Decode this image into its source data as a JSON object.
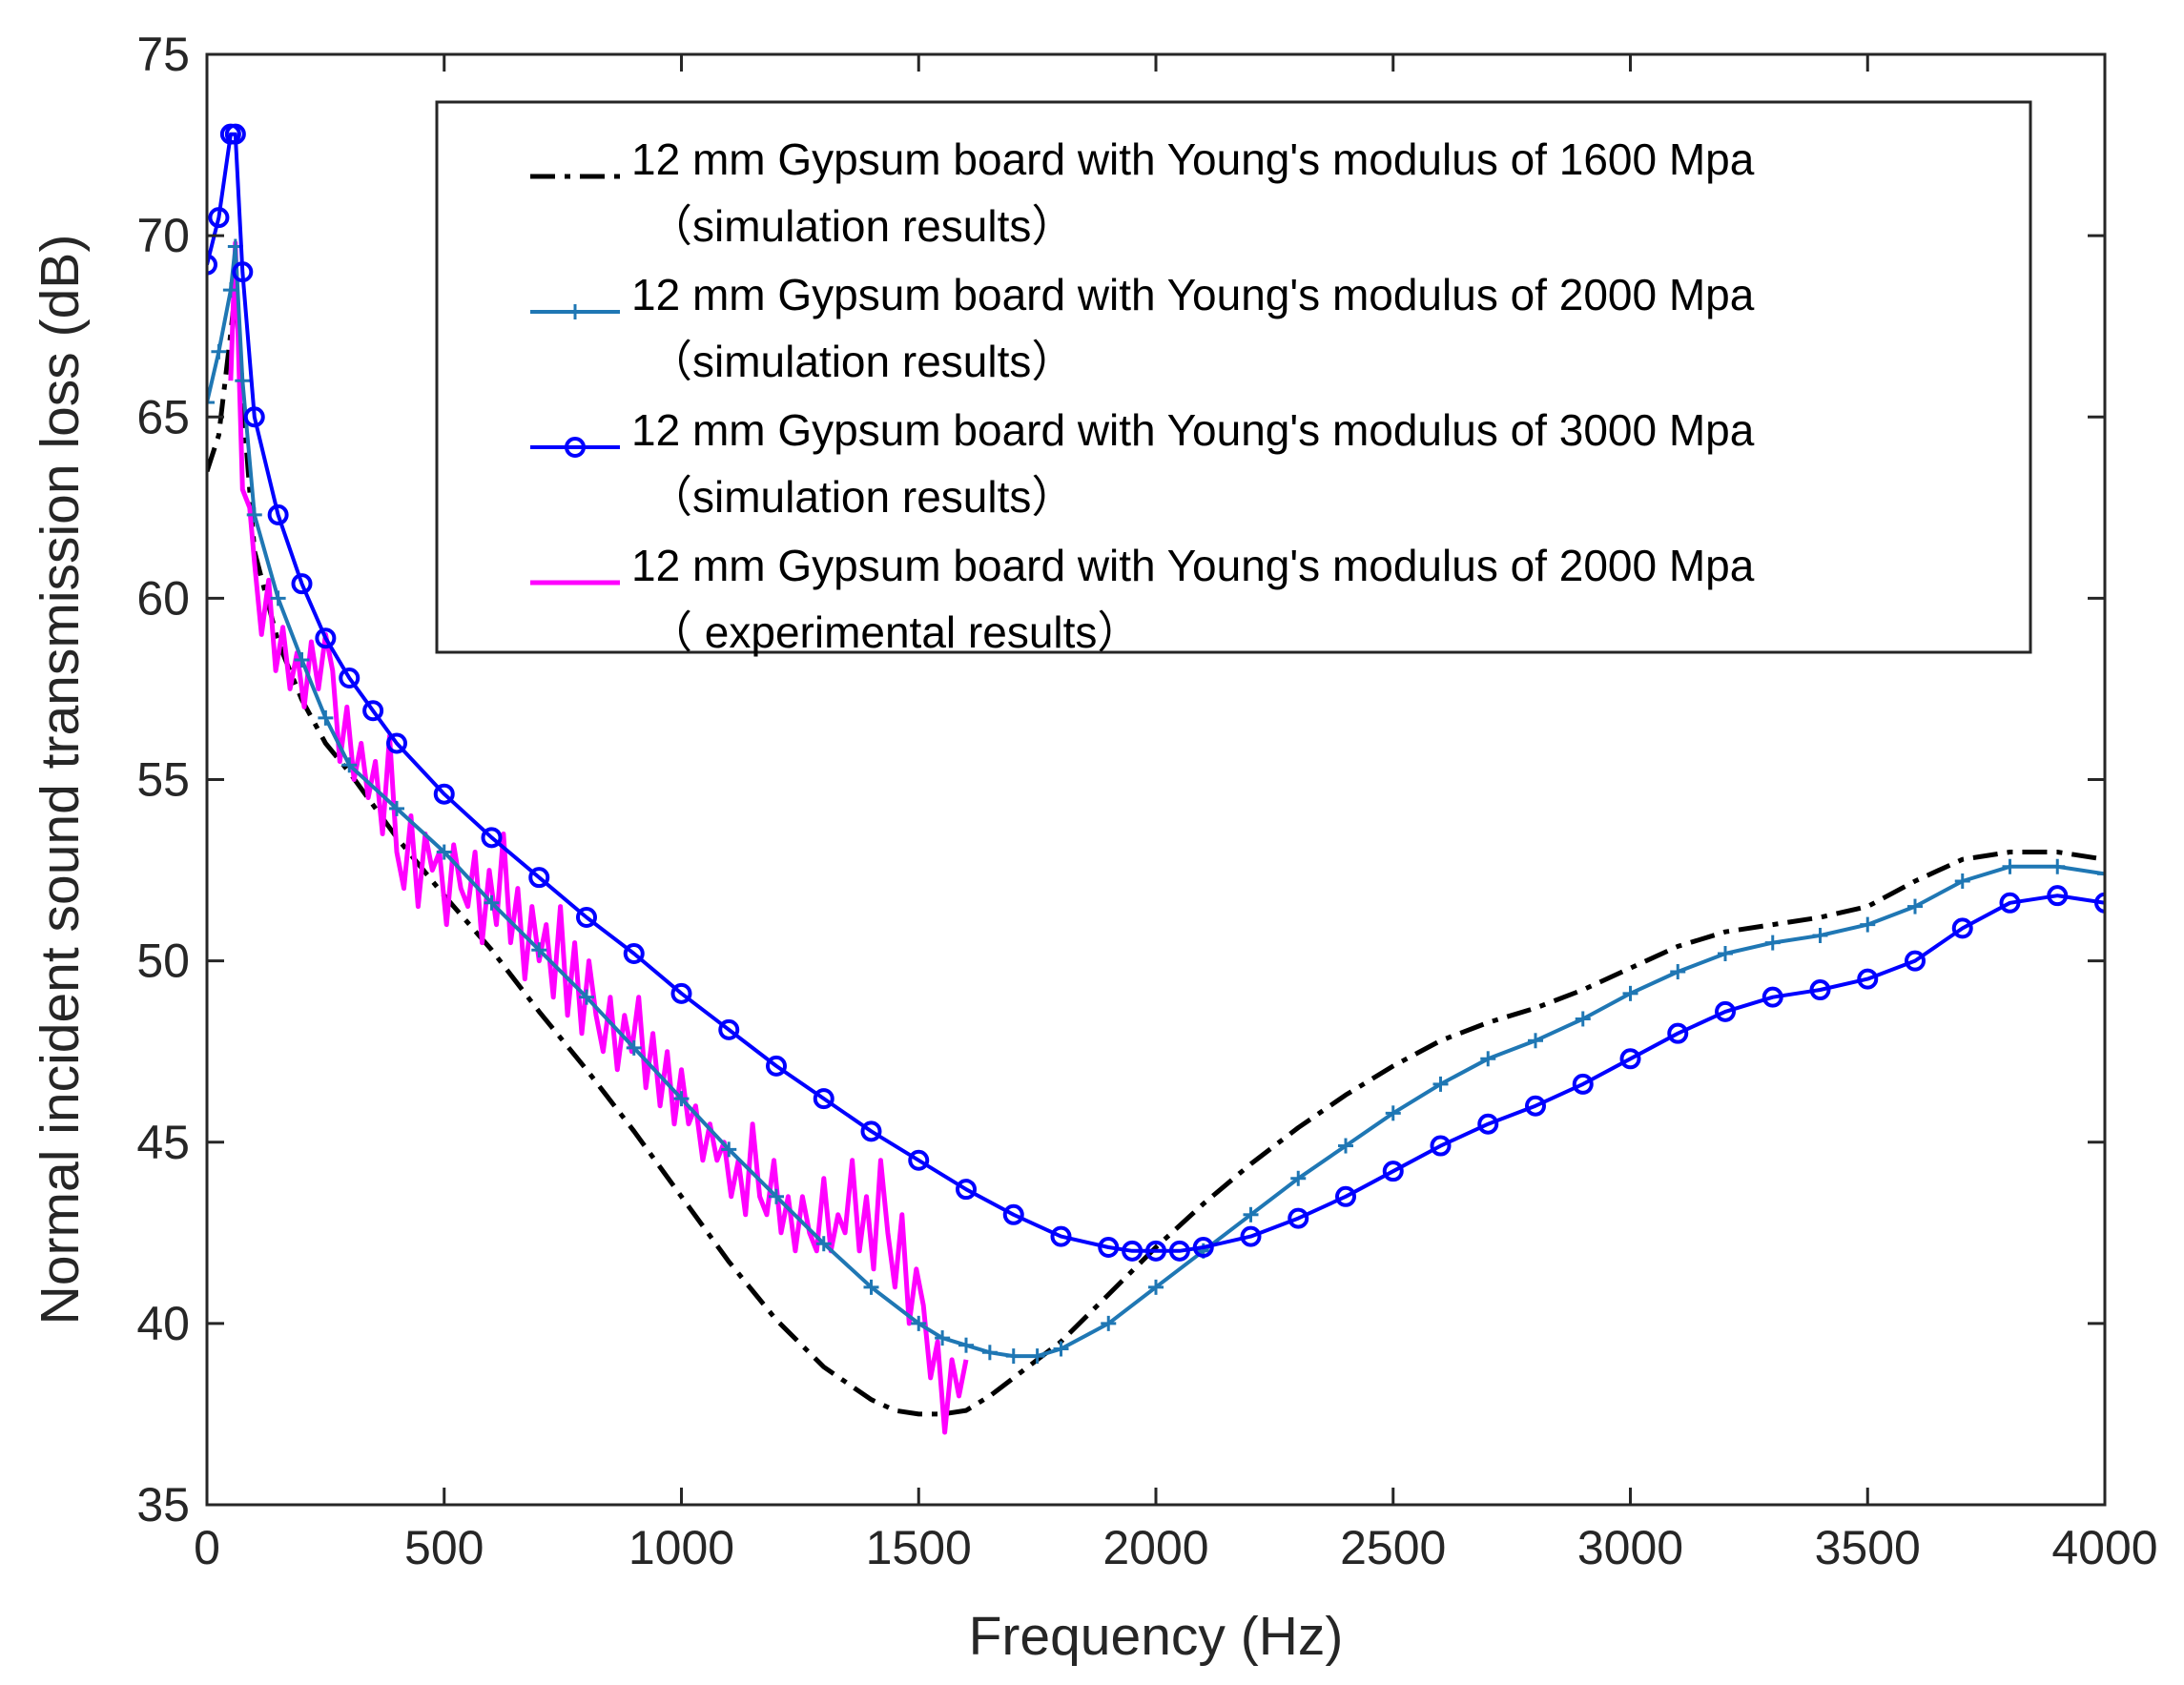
{
  "chart_data": {
    "type": "line",
    "title": "",
    "xlabel": "Frequency (Hz)",
    "ylabel": "Normal incident sound transmission loss (dB)",
    "xlim": [
      0,
      4000
    ],
    "ylim": [
      35,
      75
    ],
    "xticks": [
      0,
      500,
      1000,
      1500,
      2000,
      2500,
      3000,
      3500,
      4000
    ],
    "yticks": [
      35,
      40,
      45,
      50,
      55,
      60,
      65,
      70,
      75
    ],
    "grid": false,
    "legend_position": "top-right",
    "series": [
      {
        "name": "12 mm Gypsum board with Young's modulus of 1600 Mpa",
        "name_line2": "（simulation results）",
        "color": "#000000",
        "style": "dash-dot",
        "marker": "none",
        "x": [
          0,
          25,
          50,
          60,
          75,
          100,
          150,
          200,
          250,
          300,
          400,
          500,
          600,
          700,
          800,
          900,
          1000,
          1100,
          1200,
          1300,
          1400,
          1450,
          1500,
          1550,
          1600,
          1650,
          1700,
          1800,
          1900,
          2000,
          2100,
          2200,
          2300,
          2400,
          2500,
          2600,
          2700,
          2800,
          2900,
          3000,
          3100,
          3200,
          3300,
          3400,
          3500,
          3600,
          3700,
          3800,
          3900,
          4000
        ],
        "y": [
          63.5,
          64.5,
          67.3,
          68.5,
          65.5,
          61.3,
          58.8,
          57.2,
          56.0,
          55.2,
          53.4,
          51.8,
          50.3,
          48.6,
          47.0,
          45.3,
          43.5,
          41.7,
          40.1,
          38.8,
          37.9,
          37.6,
          37.5,
          37.5,
          37.6,
          38.0,
          38.5,
          39.5,
          40.8,
          42.1,
          43.3,
          44.4,
          45.4,
          46.3,
          47.1,
          47.8,
          48.3,
          48.7,
          49.2,
          49.8,
          50.4,
          50.8,
          51.0,
          51.2,
          51.5,
          52.2,
          52.8,
          53.0,
          53.0,
          52.8
        ]
      },
      {
        "name": "12 mm Gypsum board with Young's modulus of 2000 Mpa",
        "name_line2": "（simulation results）",
        "color": "#1f77b4",
        "style": "solid",
        "marker": "plus",
        "x": [
          0,
          25,
          50,
          60,
          75,
          100,
          150,
          200,
          250,
          300,
          400,
          500,
          600,
          700,
          800,
          900,
          1000,
          1100,
          1200,
          1300,
          1400,
          1500,
          1550,
          1600,
          1650,
          1700,
          1750,
          1800,
          1900,
          2000,
          2100,
          2200,
          2300,
          2400,
          2500,
          2600,
          2700,
          2800,
          2900,
          3000,
          3100,
          3200,
          3300,
          3400,
          3500,
          3600,
          3700,
          3800,
          3900,
          4000
        ],
        "y": [
          65.4,
          66.8,
          68.5,
          69.7,
          66.0,
          62.3,
          60.0,
          58.3,
          56.7,
          55.4,
          54.2,
          53.0,
          51.6,
          50.3,
          49.0,
          47.6,
          46.2,
          44.8,
          43.5,
          42.2,
          41.0,
          40.0,
          39.6,
          39.4,
          39.2,
          39.1,
          39.1,
          39.3,
          40.0,
          41.0,
          42.0,
          43.0,
          44.0,
          44.9,
          45.8,
          46.6,
          47.3,
          47.8,
          48.4,
          49.1,
          49.7,
          50.2,
          50.5,
          50.7,
          51.0,
          51.5,
          52.2,
          52.6,
          52.6,
          52.4
        ]
      },
      {
        "name": "12 mm Gypsum board with Young's modulus of 3000 Mpa",
        "name_line2": "（simulation results）",
        "color": "#0000ff",
        "style": "solid",
        "marker": "circle",
        "x": [
          0,
          25,
          50,
          60,
          75,
          100,
          150,
          200,
          250,
          300,
          350,
          400,
          500,
          600,
          700,
          800,
          900,
          1000,
          1100,
          1200,
          1300,
          1400,
          1500,
          1600,
          1700,
          1800,
          1900,
          1950,
          2000,
          2050,
          2100,
          2200,
          2300,
          2400,
          2500,
          2600,
          2700,
          2800,
          2900,
          3000,
          3100,
          3200,
          3300,
          3400,
          3500,
          3600,
          3700,
          3800,
          3900,
          4000
        ],
        "y": [
          69.2,
          70.5,
          72.8,
          72.8,
          69.0,
          65.0,
          62.3,
          60.4,
          58.9,
          57.8,
          56.9,
          56.0,
          54.6,
          53.4,
          52.3,
          51.2,
          50.2,
          49.1,
          48.1,
          47.1,
          46.2,
          45.3,
          44.5,
          43.7,
          43.0,
          42.4,
          42.1,
          42.0,
          42.0,
          42.0,
          42.1,
          42.4,
          42.9,
          43.5,
          44.2,
          44.9,
          45.5,
          46.0,
          46.6,
          47.3,
          48.0,
          48.6,
          49.0,
          49.2,
          49.5,
          50.0,
          50.9,
          51.6,
          51.8,
          51.6
        ]
      },
      {
        "name": "12 mm Gypsum board with Young's modulus of 2000 Mpa",
        "name_line2": "（ experimental results）",
        "color": "#ff00ff",
        "style": "solid",
        "marker": "none",
        "x": [
          50,
          60,
          75,
          90,
          100,
          115,
          130,
          145,
          160,
          175,
          190,
          205,
          220,
          235,
          250,
          265,
          280,
          295,
          310,
          325,
          340,
          355,
          370,
          385,
          400,
          415,
          430,
          445,
          460,
          475,
          490,
          505,
          520,
          535,
          550,
          565,
          580,
          595,
          610,
          625,
          640,
          655,
          670,
          685,
          700,
          715,
          730,
          745,
          760,
          775,
          790,
          805,
          820,
          835,
          850,
          865,
          880,
          895,
          910,
          925,
          940,
          955,
          970,
          985,
          1000,
          1015,
          1030,
          1045,
          1060,
          1075,
          1090,
          1105,
          1120,
          1135,
          1150,
          1165,
          1180,
          1195,
          1210,
          1225,
          1240,
          1255,
          1270,
          1285,
          1300,
          1315,
          1330,
          1345,
          1360,
          1375,
          1390,
          1405,
          1420,
          1435,
          1450,
          1465,
          1480,
          1495,
          1510,
          1525,
          1540,
          1555,
          1570,
          1585,
          1600
        ],
        "y": [
          66.0,
          69.8,
          63.0,
          62.5,
          61.0,
          59.0,
          60.5,
          58.0,
          59.2,
          57.5,
          58.5,
          57.0,
          58.8,
          57.5,
          59.0,
          58.0,
          55.5,
          57.0,
          55.0,
          56.0,
          54.5,
          55.5,
          53.5,
          56.2,
          53.0,
          52.0,
          54.0,
          51.5,
          53.5,
          52.5,
          53.0,
          51.0,
          53.2,
          52.0,
          51.5,
          53.0,
          50.5,
          52.5,
          51.0,
          53.5,
          50.5,
          52.0,
          49.5,
          51.5,
          50.0,
          51.0,
          49.0,
          51.5,
          48.5,
          50.5,
          48.0,
          50.0,
          48.5,
          47.5,
          49.0,
          47.0,
          48.5,
          47.5,
          49.0,
          46.5,
          48.0,
          46.0,
          47.5,
          45.5,
          47.0,
          45.5,
          46.0,
          44.5,
          45.5,
          44.5,
          45.0,
          43.5,
          44.5,
          43.0,
          45.5,
          43.5,
          43.0,
          44.5,
          42.5,
          43.5,
          42.0,
          43.5,
          42.5,
          42.0,
          44.0,
          42.0,
          43.0,
          42.5,
          44.5,
          42.0,
          43.5,
          41.5,
          44.5,
          42.5,
          41.0,
          43.0,
          40.0,
          41.5,
          40.5,
          38.5,
          39.5,
          37.0,
          39.0,
          38.0,
          39.0
        ]
      }
    ]
  }
}
